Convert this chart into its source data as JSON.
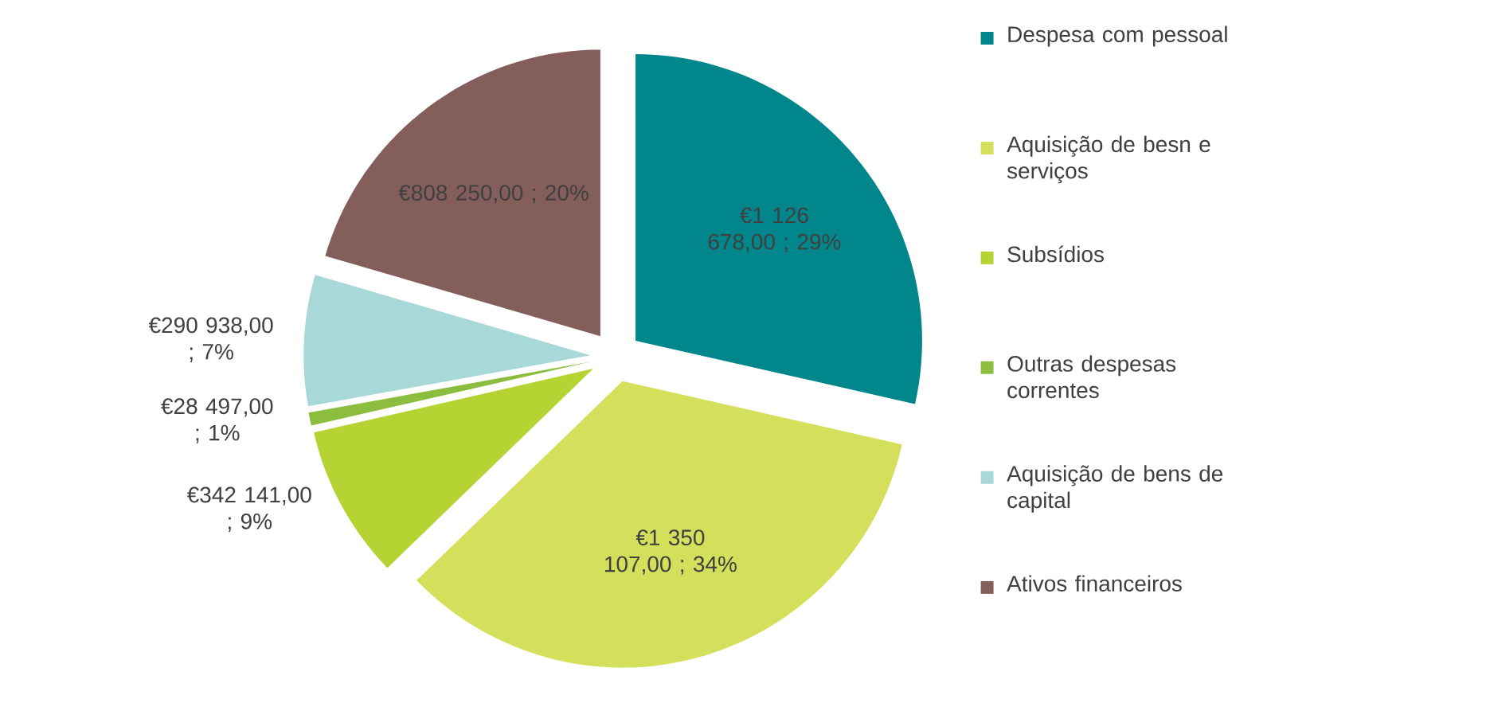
{
  "chart_data": {
    "type": "pie",
    "categories": [
      "Despesa com pessoal",
      "Aquisição de besn e serviços",
      "Subsídios",
      "Outras despesas correntes",
      "Aquisição de bens de capital",
      "Ativos financeiros"
    ],
    "values": [
      1126678,
      1350107,
      342141,
      28497,
      290938,
      808250
    ],
    "colors": [
      "#00868b",
      "#d4df5b",
      "#b6d334",
      "#8cbd3f",
      "#a9d8d8",
      "#845e5b"
    ],
    "value_labels": [
      "€1 126 678,00 ; 29%",
      "€1 350 107,00 ; 34%",
      "€342 141,00 ; 9%",
      "€28 497,00 ; 1%",
      "€290 938,00 ; 7%",
      "€808 250,00 ; 20%"
    ],
    "legend": "right"
  }
}
